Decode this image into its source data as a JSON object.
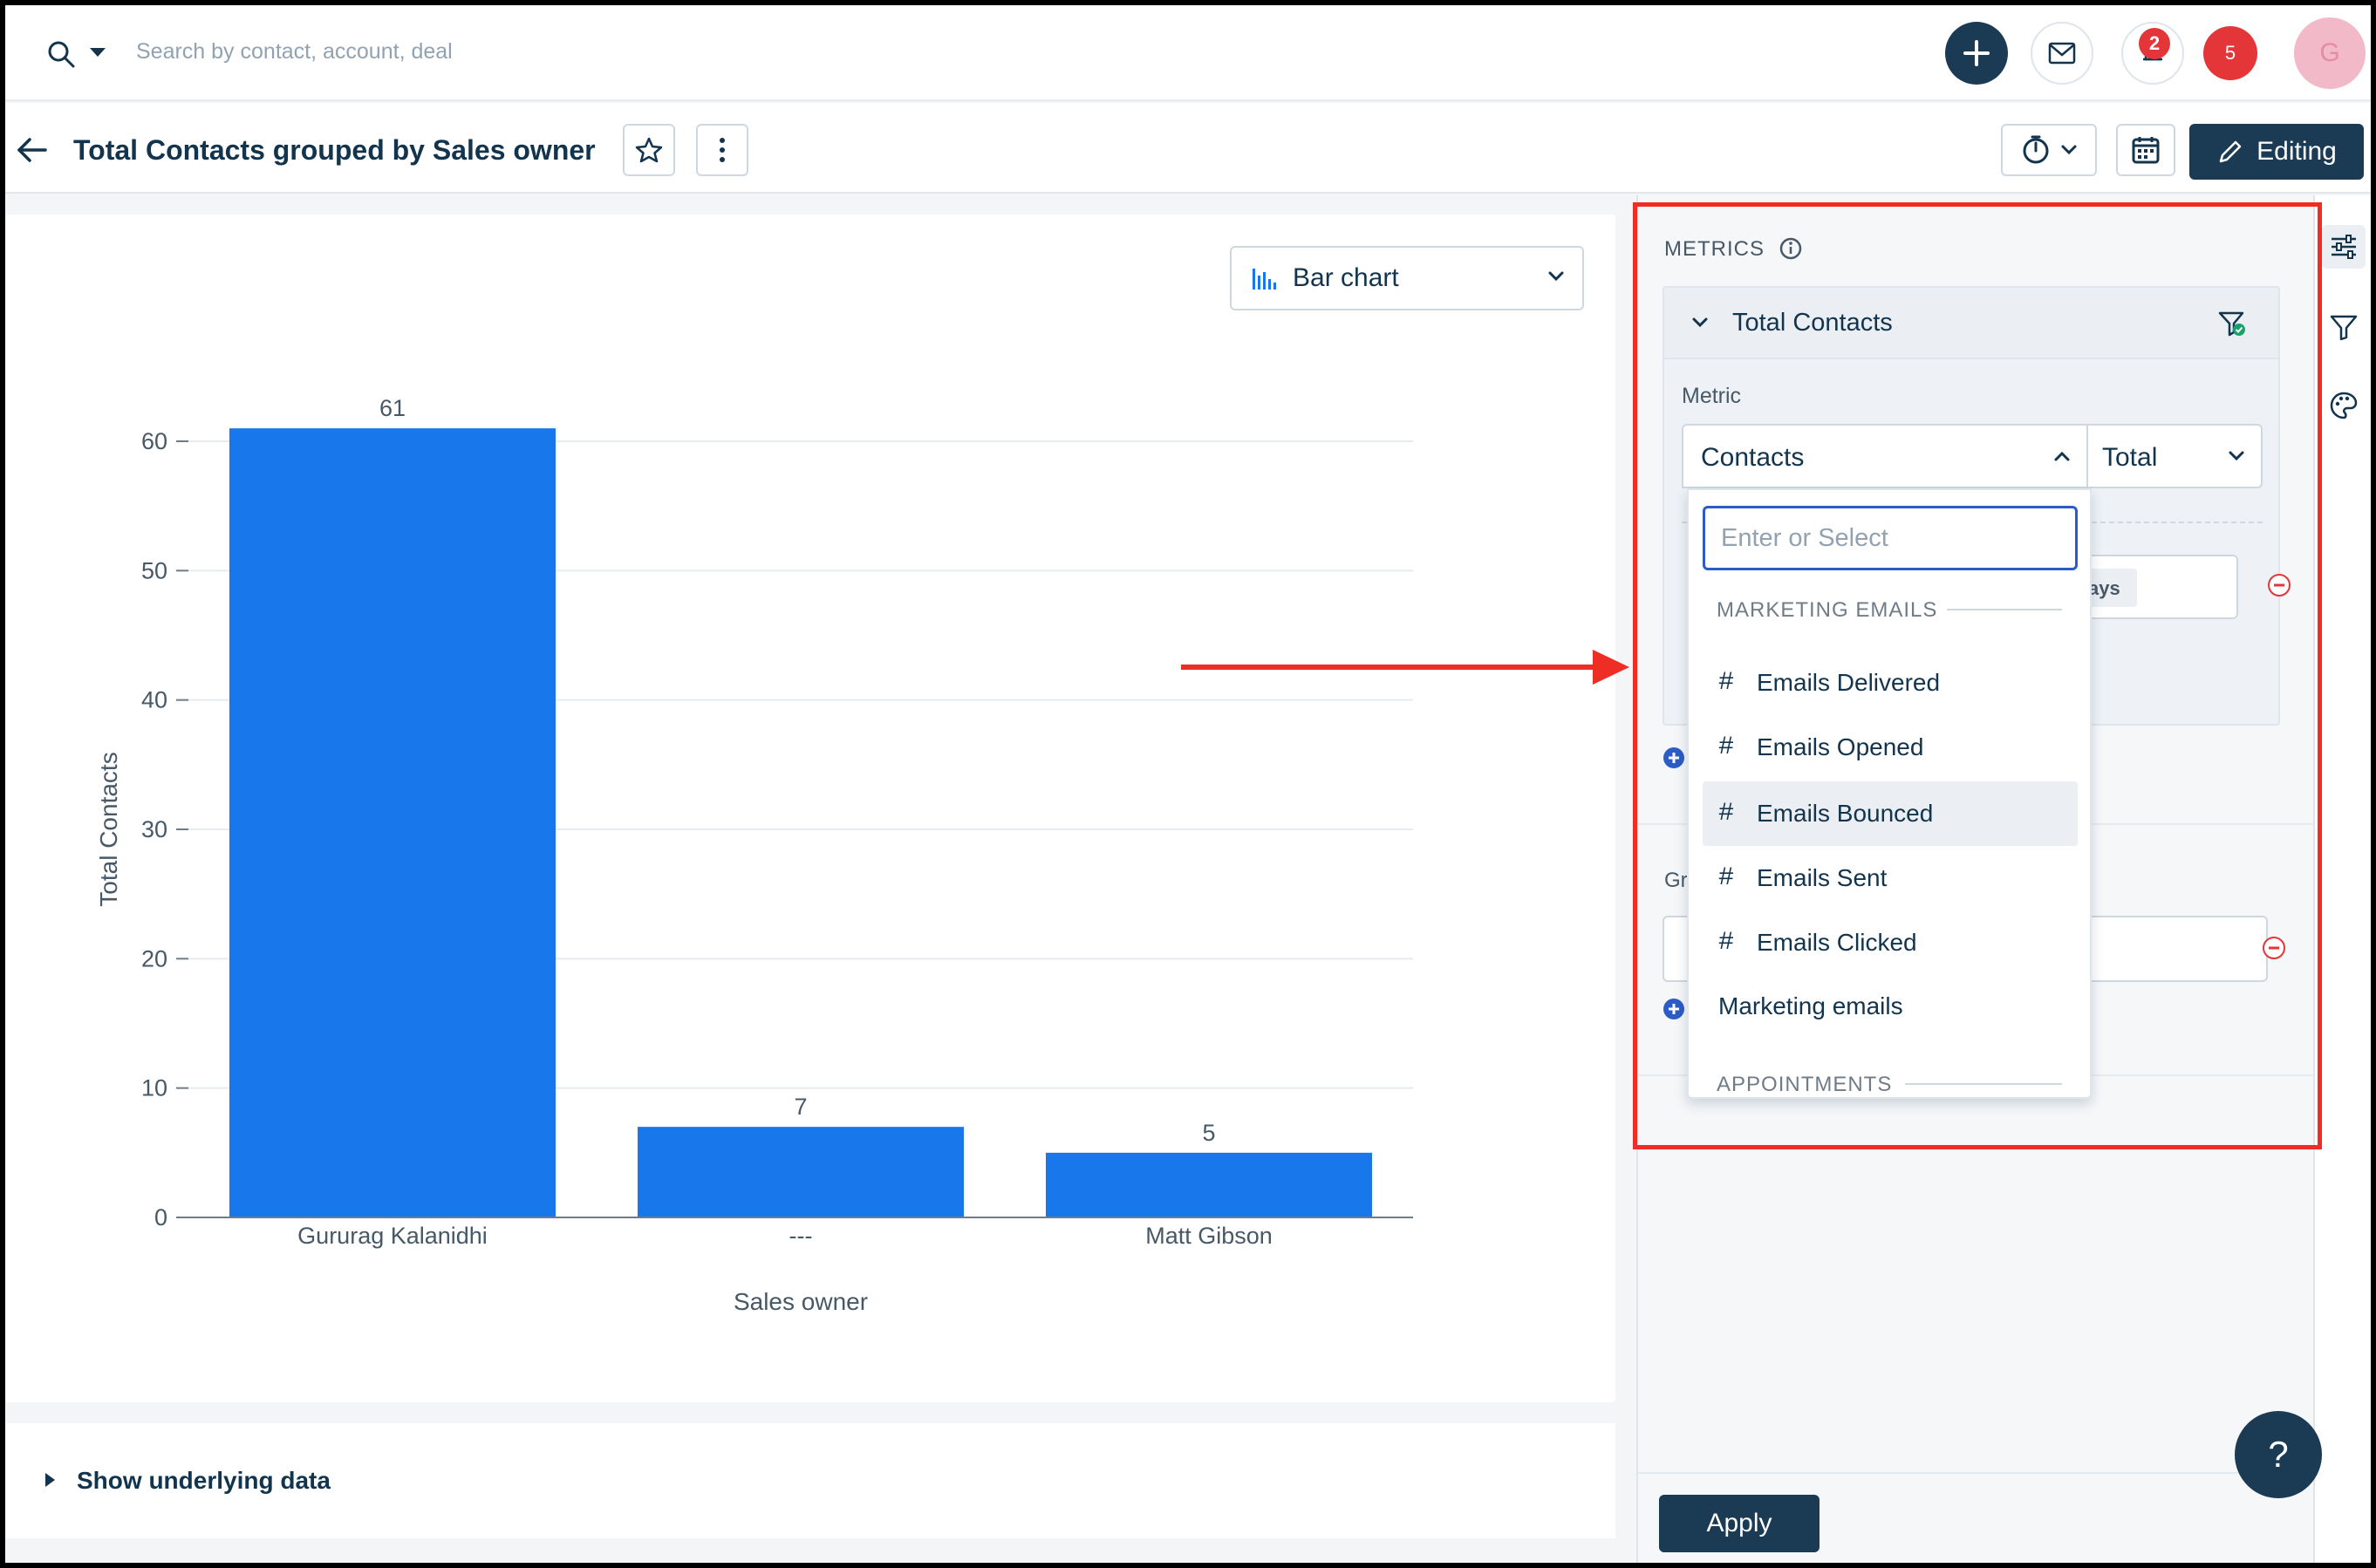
{
  "topbar": {
    "search_placeholder": "Search by contact, account, deal",
    "bell_count": "2",
    "notification_count": "5",
    "avatar_initial": "G"
  },
  "header": {
    "title": "Total Contacts grouped by Sales owner",
    "editing_label": "Editing"
  },
  "chart_toolbar": {
    "chart_type_label": "Bar chart"
  },
  "chart_data": {
    "type": "bar",
    "categories": [
      "Gururag Kalanidhi",
      "---",
      "Matt Gibson"
    ],
    "values": [
      61,
      7,
      5
    ],
    "data_labels": [
      "61",
      "7",
      "5"
    ],
    "xlabel": "Sales owner",
    "ylabel": "Total Contacts",
    "ylim": [
      0,
      60
    ],
    "yticks": [
      0,
      10,
      20,
      30,
      40,
      50,
      60
    ],
    "ytick_labels": [
      "0",
      "10",
      "20",
      "30",
      "40",
      "50",
      "60"
    ],
    "grid": true,
    "bar_color": "#1877ea"
  },
  "underlying": {
    "label": "Show underlying data"
  },
  "panel": {
    "metrics_title": "METRICS",
    "metric_name": "Total Contacts",
    "metric_label": "Metric",
    "metric_value": "Contacts",
    "aggregation_value": "Total",
    "fragment_chip": "ays",
    "group_fragment": "Gr",
    "apply_label": "Apply"
  },
  "dropdown": {
    "placeholder": "Enter or Select",
    "section_marketing": "MARKETING EMAILS",
    "items": [
      {
        "label": "Emails Delivered"
      },
      {
        "label": "Emails Opened"
      },
      {
        "label": "Emails Bounced"
      },
      {
        "label": "Emails Sent"
      },
      {
        "label": "Emails Clicked"
      }
    ],
    "plain_item": "Marketing emails",
    "section_appointments": "APPOINTMENTS"
  },
  "help": {
    "label": "?"
  },
  "colors": {
    "navy": "#1b3a54",
    "bar": "#1877ea",
    "annotation": "#ee2e24",
    "badge": "#e43538"
  }
}
